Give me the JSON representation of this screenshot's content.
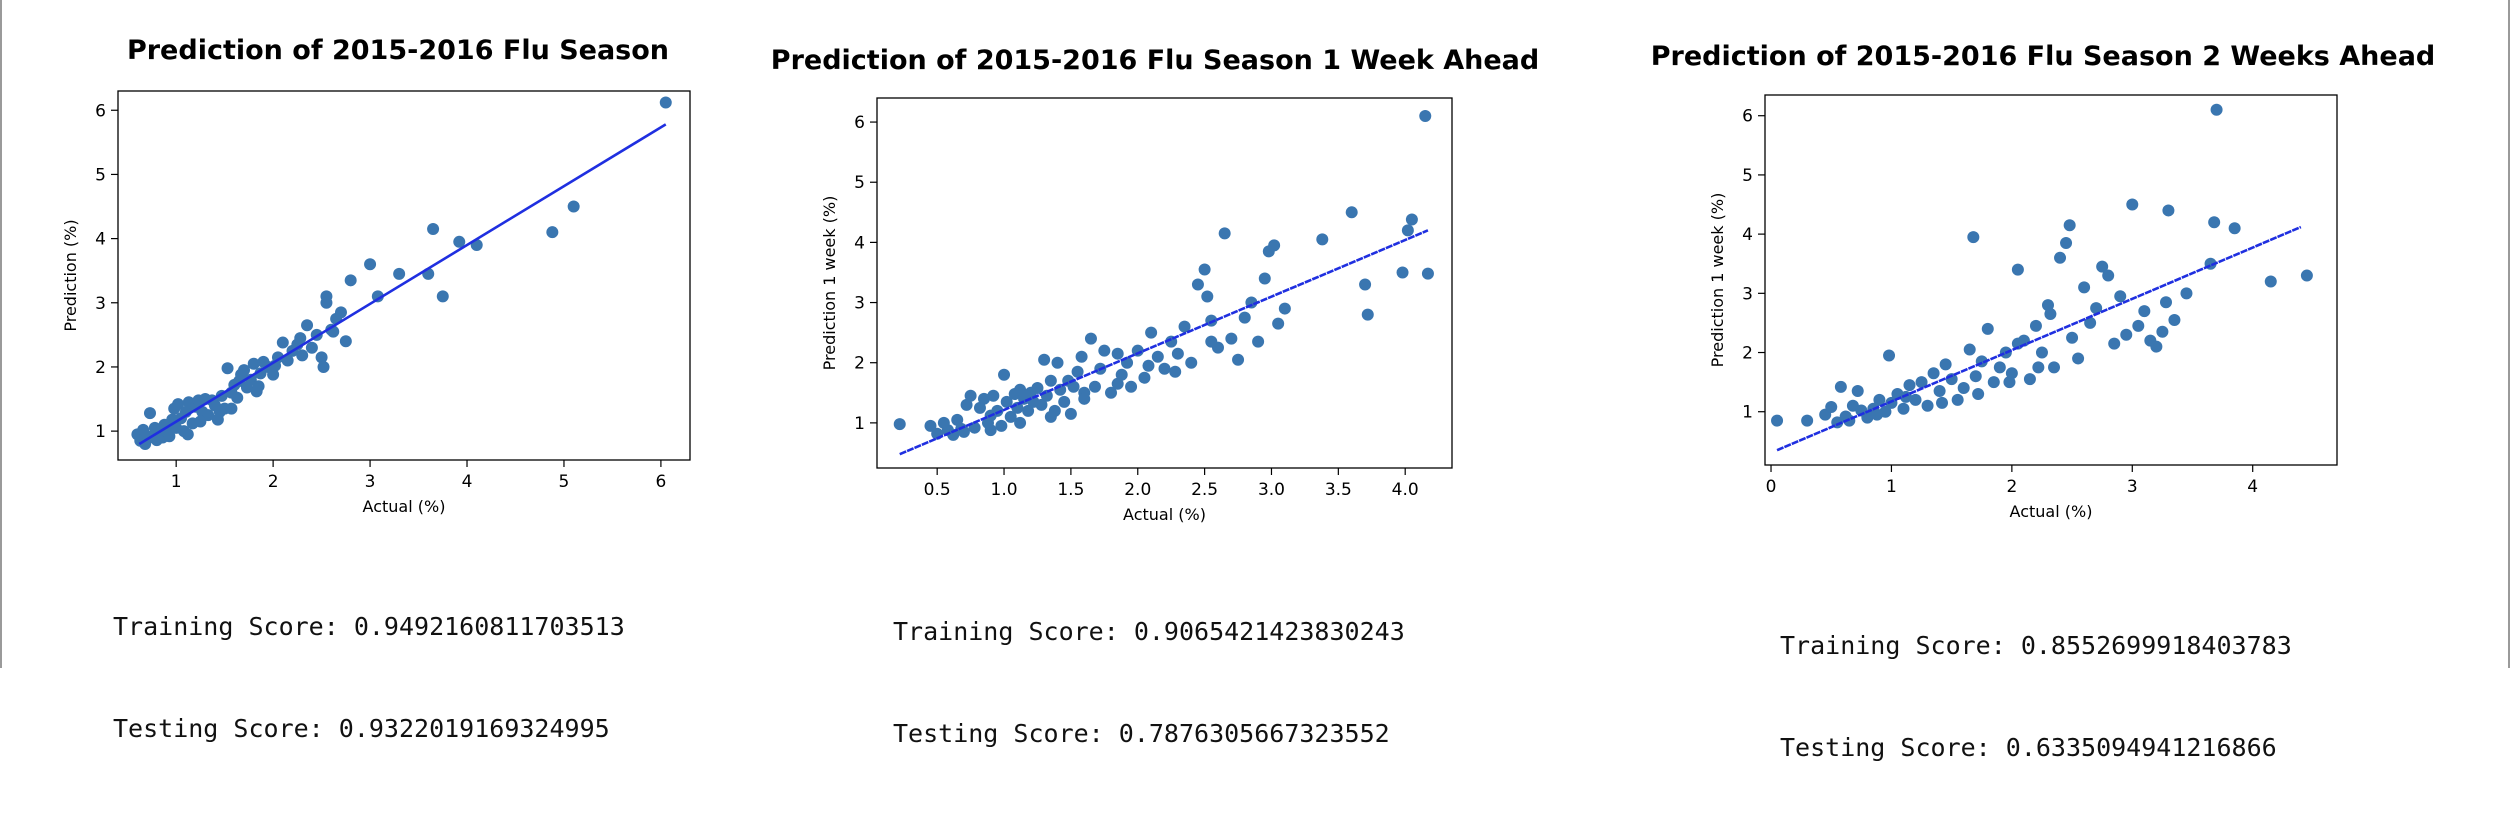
{
  "colors": {
    "points": "#3a76b0",
    "fit_line": "#1f2fe0",
    "frame": "#000000"
  },
  "chart_data": [
    {
      "type": "scatter",
      "title": "Prediction of 2015-2016 Flu Season",
      "xlabel": "Actual (%)",
      "ylabel": "Prediction (%)",
      "xlim": [
        0.4,
        6.3
      ],
      "ylim": [
        0.55,
        6.3
      ],
      "xticks": [
        1,
        2,
        3,
        4,
        5,
        6
      ],
      "yticks": [
        1,
        2,
        3,
        4,
        5,
        6
      ],
      "fit_line": {
        "x": [
          0.62,
          6.05
        ],
        "y": [
          0.8,
          5.78
        ]
      },
      "points": [
        [
          0.6,
          0.95
        ],
        [
          0.63,
          0.85
        ],
        [
          0.66,
          1.02
        ],
        [
          0.7,
          0.88
        ],
        [
          0.73,
          1.28
        ],
        [
          0.75,
          0.92
        ],
        [
          0.78,
          1.05
        ],
        [
          0.8,
          0.86
        ],
        [
          0.83,
          0.98
        ],
        [
          0.86,
          0.9
        ],
        [
          0.9,
          1.0
        ],
        [
          0.93,
          0.92
        ],
        [
          0.96,
          1.18
        ],
        [
          0.98,
          1.35
        ],
        [
          1.0,
          1.05
        ],
        [
          1.02,
          1.42
        ],
        [
          1.05,
          1.2
        ],
        [
          1.08,
          1.0
        ],
        [
          1.1,
          1.3
        ],
        [
          1.13,
          1.45
        ],
        [
          1.17,
          1.12
        ],
        [
          1.2,
          1.38
        ],
        [
          1.23,
          1.48
        ],
        [
          1.27,
          1.3
        ],
        [
          1.3,
          1.5
        ],
        [
          1.33,
          1.25
        ],
        [
          1.37,
          1.48
        ],
        [
          1.4,
          1.4
        ],
        [
          1.43,
          1.18
        ],
        [
          1.47,
          1.55
        ],
        [
          1.5,
          1.35
        ],
        [
          1.53,
          1.98
        ],
        [
          1.57,
          1.6
        ],
        [
          1.6,
          1.72
        ],
        [
          1.63,
          1.52
        ],
        [
          1.67,
          1.88
        ],
        [
          1.7,
          1.95
        ],
        [
          1.73,
          1.68
        ],
        [
          1.77,
          1.8
        ],
        [
          1.8,
          2.05
        ],
        [
          1.83,
          1.62
        ],
        [
          1.87,
          1.9
        ],
        [
          1.9,
          2.08
        ],
        [
          1.95,
          2.0
        ],
        [
          2.0,
          1.88
        ],
        [
          2.05,
          2.15
        ],
        [
          2.1,
          2.38
        ],
        [
          2.15,
          2.1
        ],
        [
          2.2,
          2.25
        ],
        [
          2.25,
          2.35
        ],
        [
          2.3,
          2.18
        ],
        [
          2.35,
          2.65
        ],
        [
          2.4,
          2.3
        ],
        [
          2.45,
          2.5
        ],
        [
          2.5,
          2.15
        ],
        [
          2.55,
          3.1
        ],
        [
          2.6,
          2.58
        ],
        [
          2.65,
          2.75
        ],
        [
          2.7,
          2.85
        ],
        [
          2.75,
          2.4
        ],
        [
          2.8,
          3.35
        ],
        [
          3.0,
          3.6
        ],
        [
          3.08,
          3.1
        ],
        [
          3.3,
          3.45
        ],
        [
          3.6,
          3.45
        ],
        [
          3.65,
          4.15
        ],
        [
          3.75,
          3.1
        ],
        [
          3.92,
          3.95
        ],
        [
          4.1,
          3.9
        ],
        [
          4.88,
          4.1
        ],
        [
          5.1,
          4.5
        ],
        [
          6.05,
          6.12
        ],
        [
          1.57,
          1.35
        ],
        [
          2.52,
          2.0
        ],
        [
          2.55,
          3.0
        ],
        [
          0.68,
          0.8
        ],
        [
          0.88,
          1.1
        ],
        [
          1.12,
          0.95
        ],
        [
          1.25,
          1.15
        ],
        [
          1.45,
          1.3
        ],
        [
          1.65,
          1.78
        ],
        [
          1.85,
          1.7
        ],
        [
          2.02,
          2.02
        ],
        [
          2.28,
          2.45
        ],
        [
          2.62,
          2.55
        ]
      ],
      "scores": {
        "training": "Training Score: 0.9492160811703513",
        "testing": "Testing Score: 0.9322019169324995"
      }
    },
    {
      "type": "scatter",
      "title": "Prediction of 2015-2016 Flu Season 1 Week Ahead",
      "xlabel": "Actual (%)",
      "ylabel": "Prediction 1 week (%)",
      "xlim": [
        0.05,
        4.35
      ],
      "ylim": [
        0.25,
        6.4
      ],
      "xticks": [
        0.5,
        1.0,
        1.5,
        2.0,
        2.5,
        3.0,
        3.5,
        4.0
      ],
      "yticks": [
        1,
        2,
        3,
        4,
        5,
        6
      ],
      "fit_line": {
        "x": [
          0.22,
          4.17
        ],
        "y": [
          0.48,
          4.2
        ]
      },
      "points": [
        [
          0.22,
          0.98
        ],
        [
          0.45,
          0.95
        ],
        [
          0.5,
          0.82
        ],
        [
          0.55,
          1.0
        ],
        [
          0.58,
          0.88
        ],
        [
          0.62,
          0.8
        ],
        [
          0.65,
          1.05
        ],
        [
          0.7,
          0.85
        ],
        [
          0.72,
          1.3
        ],
        [
          0.75,
          1.45
        ],
        [
          0.78,
          0.92
        ],
        [
          0.82,
          1.25
        ],
        [
          0.85,
          1.4
        ],
        [
          0.88,
          1.0
        ],
        [
          0.9,
          1.12
        ],
        [
          0.92,
          1.45
        ],
        [
          0.95,
          1.2
        ],
        [
          0.98,
          0.95
        ],
        [
          1.0,
          1.8
        ],
        [
          1.02,
          1.35
        ],
        [
          1.05,
          1.1
        ],
        [
          1.08,
          1.48
        ],
        [
          1.1,
          1.25
        ],
        [
          1.12,
          1.55
        ],
        [
          1.15,
          1.4
        ],
        [
          1.18,
          1.2
        ],
        [
          1.2,
          1.5
        ],
        [
          1.22,
          1.35
        ],
        [
          1.25,
          1.58
        ],
        [
          1.28,
          1.3
        ],
        [
          1.3,
          2.05
        ],
        [
          1.32,
          1.45
        ],
        [
          1.35,
          1.7
        ],
        [
          1.38,
          1.2
        ],
        [
          1.4,
          2.0
        ],
        [
          1.42,
          1.55
        ],
        [
          1.45,
          1.35
        ],
        [
          1.48,
          1.7
        ],
        [
          1.5,
          1.15
        ],
        [
          1.52,
          1.6
        ],
        [
          1.55,
          1.85
        ],
        [
          1.58,
          2.1
        ],
        [
          1.6,
          1.5
        ],
        [
          1.65,
          2.4
        ],
        [
          1.68,
          1.6
        ],
        [
          1.72,
          1.9
        ],
        [
          1.75,
          2.2
        ],
        [
          1.8,
          1.5
        ],
        [
          1.85,
          2.15
        ],
        [
          1.88,
          1.8
        ],
        [
          1.92,
          2.0
        ],
        [
          1.95,
          1.6
        ],
        [
          2.0,
          2.2
        ],
        [
          2.05,
          1.75
        ],
        [
          2.1,
          2.5
        ],
        [
          2.15,
          2.1
        ],
        [
          2.2,
          1.9
        ],
        [
          2.25,
          2.35
        ],
        [
          2.3,
          2.15
        ],
        [
          2.35,
          2.6
        ],
        [
          2.4,
          2.0
        ],
        [
          2.45,
          3.3
        ],
        [
          2.5,
          3.55
        ],
        [
          2.52,
          3.1
        ],
        [
          2.55,
          2.7
        ],
        [
          2.6,
          2.25
        ],
        [
          2.65,
          4.15
        ],
        [
          2.7,
          2.4
        ],
        [
          2.75,
          2.05
        ],
        [
          2.8,
          2.75
        ],
        [
          2.85,
          3.0
        ],
        [
          2.9,
          2.35
        ],
        [
          2.95,
          3.4
        ],
        [
          2.98,
          3.85
        ],
        [
          3.02,
          3.95
        ],
        [
          3.05,
          2.65
        ],
        [
          3.1,
          2.9
        ],
        [
          3.38,
          4.05
        ],
        [
          3.6,
          4.5
        ],
        [
          3.7,
          3.3
        ],
        [
          3.72,
          2.8
        ],
        [
          3.98,
          3.5
        ],
        [
          4.02,
          4.2
        ],
        [
          4.05,
          4.38
        ],
        [
          4.15,
          6.1
        ],
        [
          4.17,
          3.48
        ],
        [
          0.68,
          0.9
        ],
        [
          0.9,
          0.88
        ],
        [
          1.12,
          1.0
        ],
        [
          1.35,
          1.1
        ],
        [
          1.6,
          1.4
        ],
        [
          1.85,
          1.65
        ],
        [
          2.08,
          1.95
        ],
        [
          2.28,
          1.85
        ],
        [
          2.55,
          2.35
        ]
      ],
      "scores": {
        "training": "Training Score: 0.9065421423830243",
        "testing": "Testing Score: 0.7876305667323552"
      }
    },
    {
      "type": "scatter",
      "title": "Prediction of 2015-2016 Flu Season 2 Weeks Ahead",
      "xlabel": "Actual (%)",
      "ylabel": "Prediction 1 week (%)",
      "xlim": [
        -0.05,
        4.7
      ],
      "ylim": [
        0.1,
        6.35
      ],
      "xticks": [
        0,
        1,
        2,
        3,
        4
      ],
      "yticks": [
        1,
        2,
        3,
        4,
        5,
        6
      ],
      "fit_line": {
        "x": [
          0.05,
          4.4
        ],
        "y": [
          0.35,
          4.12
        ]
      },
      "points": [
        [
          0.05,
          0.85
        ],
        [
          0.3,
          0.85
        ],
        [
          0.45,
          0.95
        ],
        [
          0.5,
          1.08
        ],
        [
          0.55,
          0.82
        ],
        [
          0.58,
          1.42
        ],
        [
          0.62,
          0.92
        ],
        [
          0.68,
          1.1
        ],
        [
          0.72,
          1.35
        ],
        [
          0.75,
          1.02
        ],
        [
          0.8,
          0.9
        ],
        [
          0.85,
          1.05
        ],
        [
          0.9,
          1.2
        ],
        [
          0.95,
          1.0
        ],
        [
          0.98,
          1.95
        ],
        [
          1.0,
          1.15
        ],
        [
          1.05,
          1.3
        ],
        [
          1.1,
          1.05
        ],
        [
          1.15,
          1.45
        ],
        [
          1.2,
          1.2
        ],
        [
          1.25,
          1.5
        ],
        [
          1.3,
          1.1
        ],
        [
          1.35,
          1.65
        ],
        [
          1.4,
          1.35
        ],
        [
          1.45,
          1.8
        ],
        [
          1.5,
          1.55
        ],
        [
          1.55,
          1.2
        ],
        [
          1.6,
          1.4
        ],
        [
          1.65,
          2.05
        ],
        [
          1.68,
          3.95
        ],
        [
          1.7,
          1.6
        ],
        [
          1.75,
          1.85
        ],
        [
          1.8,
          2.4
        ],
        [
          1.85,
          1.5
        ],
        [
          1.9,
          1.75
        ],
        [
          1.95,
          2.0
        ],
        [
          2.0,
          1.65
        ],
        [
          2.05,
          3.4
        ],
        [
          2.1,
          2.2
        ],
        [
          2.15,
          1.55
        ],
        [
          2.2,
          2.45
        ],
        [
          2.25,
          2.0
        ],
        [
          2.3,
          2.8
        ],
        [
          2.35,
          1.75
        ],
        [
          2.4,
          3.6
        ],
        [
          2.45,
          3.85
        ],
        [
          2.48,
          4.15
        ],
        [
          2.5,
          2.25
        ],
        [
          2.55,
          1.9
        ],
        [
          2.6,
          3.1
        ],
        [
          2.65,
          2.5
        ],
        [
          2.7,
          2.75
        ],
        [
          2.75,
          3.45
        ],
        [
          2.8,
          3.3
        ],
        [
          2.85,
          2.15
        ],
        [
          2.9,
          2.95
        ],
        [
          2.95,
          2.3
        ],
        [
          3.0,
          4.5
        ],
        [
          3.05,
          2.45
        ],
        [
          3.1,
          2.7
        ],
        [
          3.15,
          2.2
        ],
        [
          3.2,
          2.1
        ],
        [
          3.25,
          2.35
        ],
        [
          3.3,
          4.4
        ],
        [
          3.35,
          2.55
        ],
        [
          3.45,
          3.0
        ],
        [
          3.65,
          3.5
        ],
        [
          3.68,
          4.2
        ],
        [
          3.7,
          6.1
        ],
        [
          3.85,
          4.1
        ],
        [
          4.15,
          3.2
        ],
        [
          4.45,
          3.3
        ],
        [
          0.65,
          0.85
        ],
        [
          0.88,
          0.95
        ],
        [
          1.12,
          1.25
        ],
        [
          1.42,
          1.15
        ],
        [
          1.72,
          1.3
        ],
        [
          1.98,
          1.5
        ],
        [
          2.22,
          1.75
        ],
        [
          2.32,
          2.65
        ],
        [
          3.28,
          2.85
        ],
        [
          2.05,
          2.15
        ]
      ],
      "scores": {
        "training": "Training Score: 0.8552699918403783",
        "testing": "Testing Score: 0.6335094941216866"
      }
    }
  ]
}
